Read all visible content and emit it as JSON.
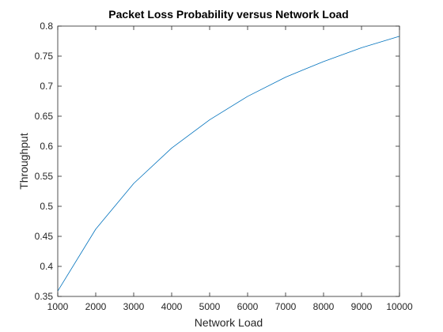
{
  "chart_data": {
    "type": "line",
    "title": "Packet Loss Probability versus Network Load",
    "xlabel": "Network Load",
    "ylabel": "Throughput",
    "xlim": [
      1000,
      10000
    ],
    "ylim": [
      0.35,
      0.8
    ],
    "xticks": [
      1000,
      2000,
      3000,
      4000,
      5000,
      6000,
      7000,
      8000,
      9000,
      10000
    ],
    "yticks": [
      0.35,
      0.4,
      0.45,
      0.5,
      0.55,
      0.6,
      0.65,
      0.7,
      0.75,
      0.8
    ],
    "xtick_labels": [
      "1000",
      "2000",
      "3000",
      "4000",
      "5000",
      "6000",
      "7000",
      "8000",
      "9000",
      "10000"
    ],
    "ytick_labels": [
      "0.35",
      "0.4",
      "0.45",
      "0.5",
      "0.55",
      "0.6",
      "0.65",
      "0.7",
      "0.75",
      "0.8"
    ],
    "grid": false,
    "series": [
      {
        "color": "#0072bd",
        "x": [
          1000,
          2000,
          3000,
          4000,
          5000,
          6000,
          7000,
          8000,
          9000,
          10000
        ],
        "y": [
          0.359,
          0.462,
          0.538,
          0.597,
          0.644,
          0.683,
          0.715,
          0.741,
          0.764,
          0.783
        ]
      }
    ]
  }
}
